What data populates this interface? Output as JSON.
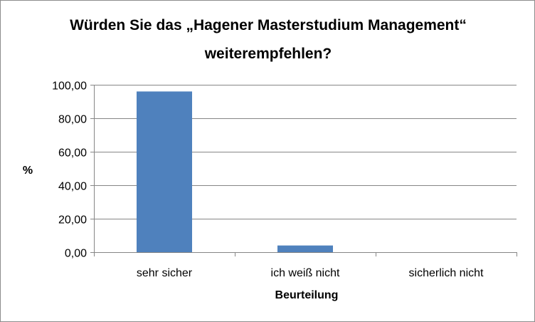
{
  "chart_data": {
    "type": "bar",
    "title_lines": [
      "Würden Sie das „Hagener Masterstudium Management“",
      "weiterempfehlen?"
    ],
    "categories": [
      "sehr sicher",
      "ich weiß nicht",
      "sicherlich nicht"
    ],
    "values": [
      96,
      4,
      0
    ],
    "ylim": [
      0,
      100
    ],
    "yticks": [
      0,
      20,
      40,
      60,
      80,
      100
    ],
    "ytick_labels": [
      "0,00",
      "20,00",
      "40,00",
      "60,00",
      "80,00",
      "100,00"
    ],
    "xlabel": "Beurteilung",
    "ylabel": "%",
    "grid": true,
    "legend": false,
    "bar_color": "#4f81bd",
    "grid_color": "#868686"
  }
}
